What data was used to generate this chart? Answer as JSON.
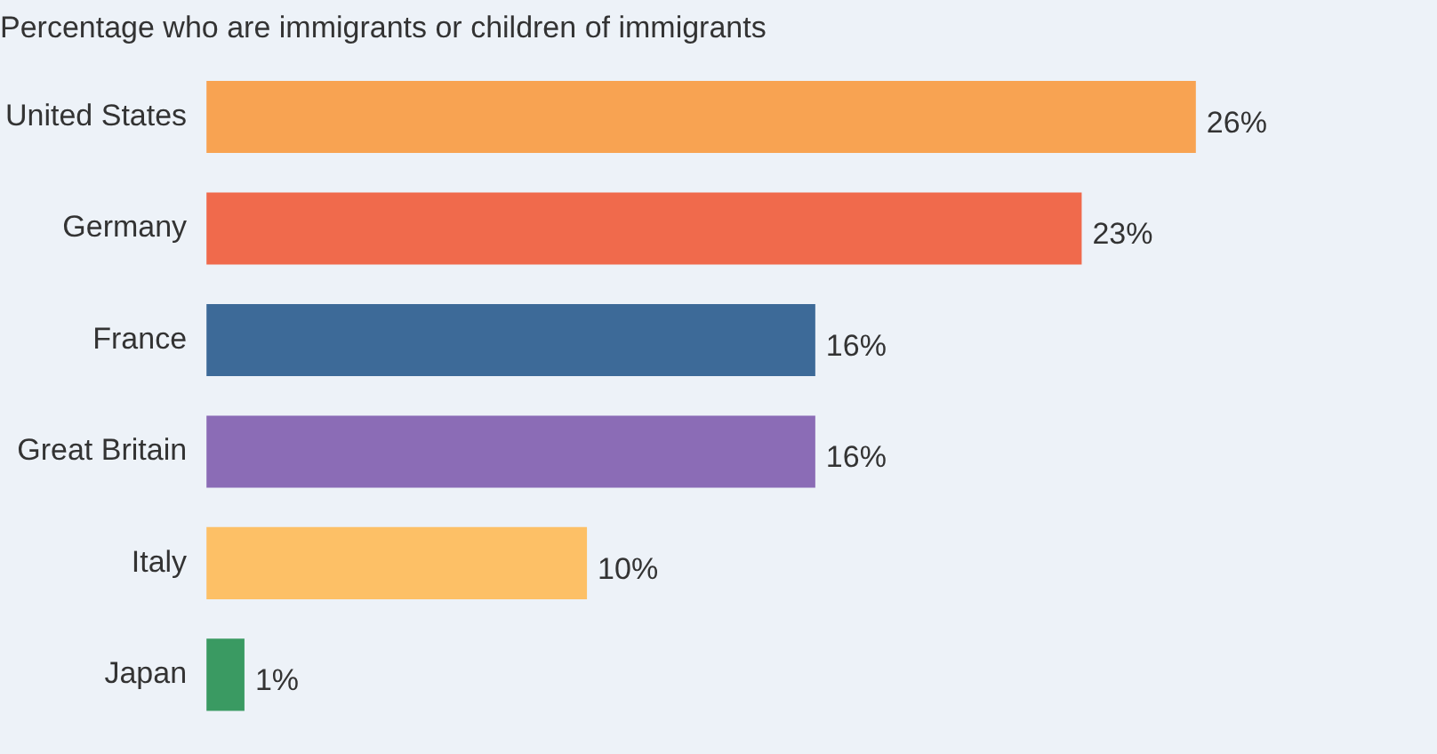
{
  "chart_data": {
    "type": "bar",
    "orientation": "horizontal",
    "title": "Percentage who are immigrants or children of immigrants",
    "categories": [
      "United States",
      "Germany",
      "France",
      "Great Britain",
      "Italy",
      "Japan"
    ],
    "values": [
      26,
      23,
      16,
      16,
      10,
      1
    ],
    "colors": [
      "#f8a352",
      "#f06a4c",
      "#3d6a98",
      "#8b6cb6",
      "#fdc066",
      "#3a9a62"
    ],
    "value_labels": [
      "26%",
      "23%",
      "16%",
      "16%",
      "10%",
      "1%"
    ],
    "legend": false
  }
}
